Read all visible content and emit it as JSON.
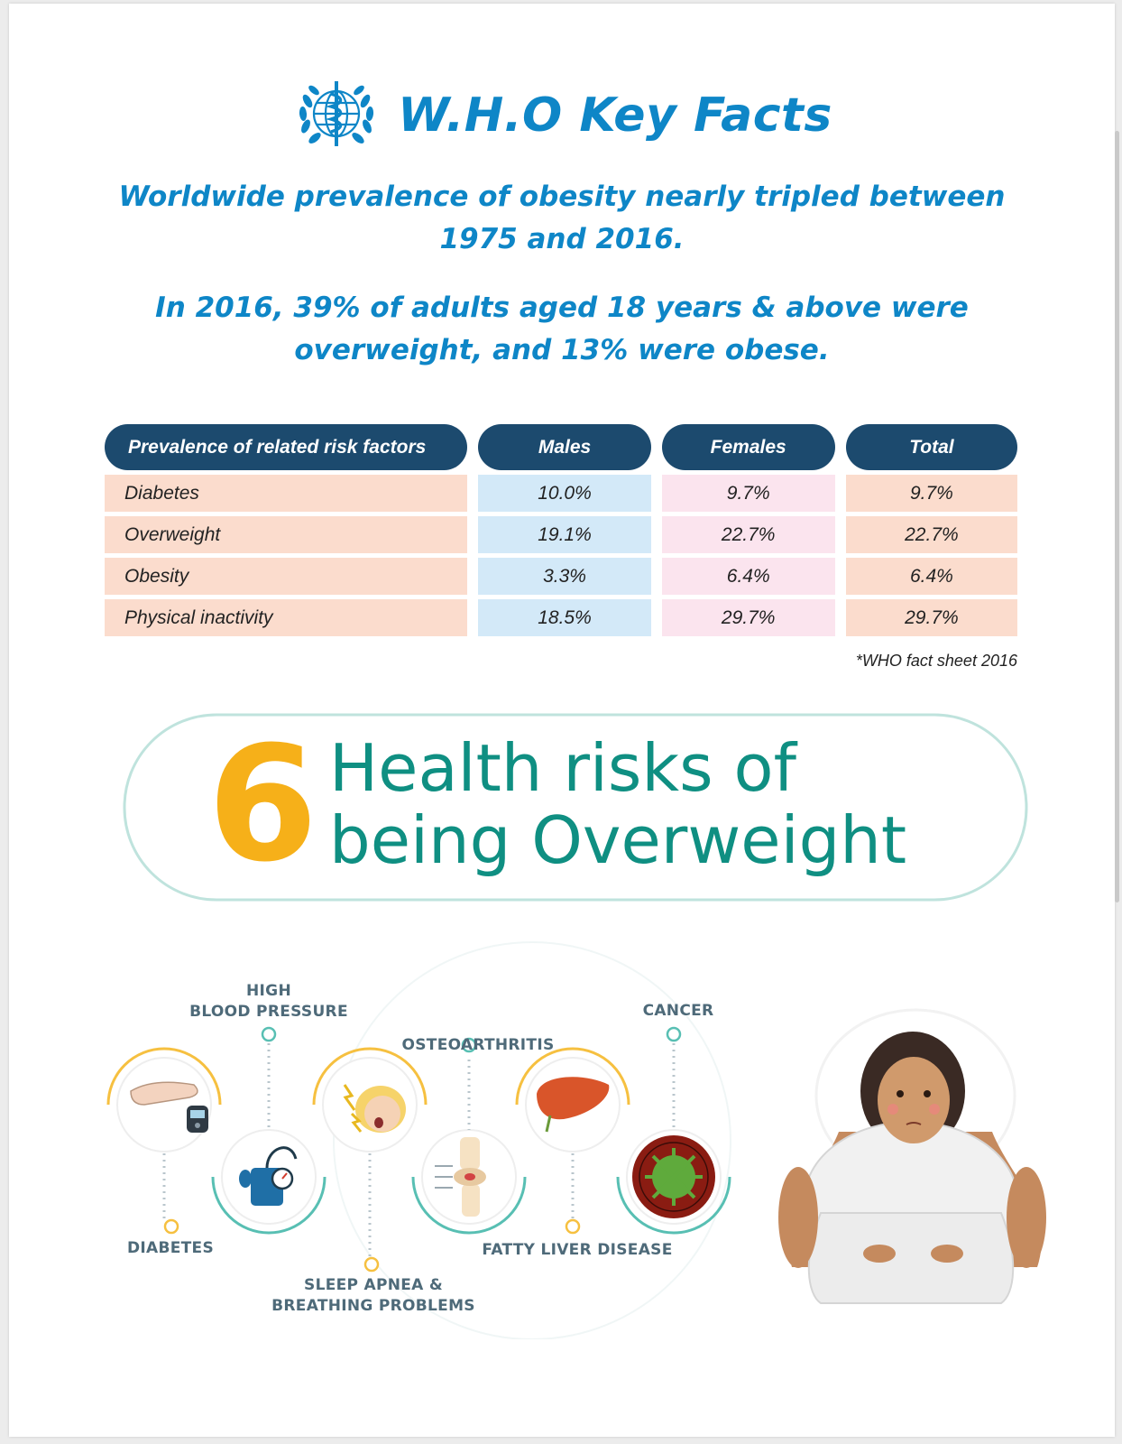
{
  "header": {
    "title": "W.H.O Key Facts",
    "logo": "who-emblem"
  },
  "facts": [
    {
      "line1": "Worldwide prevalence of obesity nearly tripled between",
      "line2": "1975 and 2016."
    },
    {
      "line1": "In 2016, 39% of adults aged 18 years & above were",
      "line2": "overweight, and 13% were obese."
    }
  ],
  "table": {
    "headers": [
      "Prevalence of related risk factors",
      "Males",
      "Females",
      "Total"
    ],
    "rows": [
      [
        "Diabetes",
        "10.0%",
        "9.7%",
        "9.7%"
      ],
      [
        "Overweight",
        "19.1%",
        "22.7%",
        "22.7%"
      ],
      [
        "Obesity",
        "3.3%",
        "6.4%",
        "6.4%"
      ],
      [
        "Physical inactivity",
        "18.5%",
        "29.7%",
        "29.7%"
      ]
    ],
    "footnote": "*WHO fact sheet 2016"
  },
  "risks_banner": {
    "number": "6",
    "line1": "Health risks of",
    "line2": "being Overweight"
  },
  "risks": {
    "high_bp_1": "HIGH",
    "high_bp_2": "BLOOD PRESSURE",
    "osteo": "OSTEOARTHRITIS",
    "cancer": "CANCER",
    "diabetes": "DIABETES",
    "sleep_1": "SLEEP APNEA &",
    "sleep_2": "BREATHING PROBLEMS",
    "fatty": "FATTY LIVER DISEASE"
  },
  "colors": {
    "title_blue": "#0e86c7",
    "header_navy": "#1c4a6e",
    "teal": "#0f8f82",
    "orange": "#f6b019"
  }
}
